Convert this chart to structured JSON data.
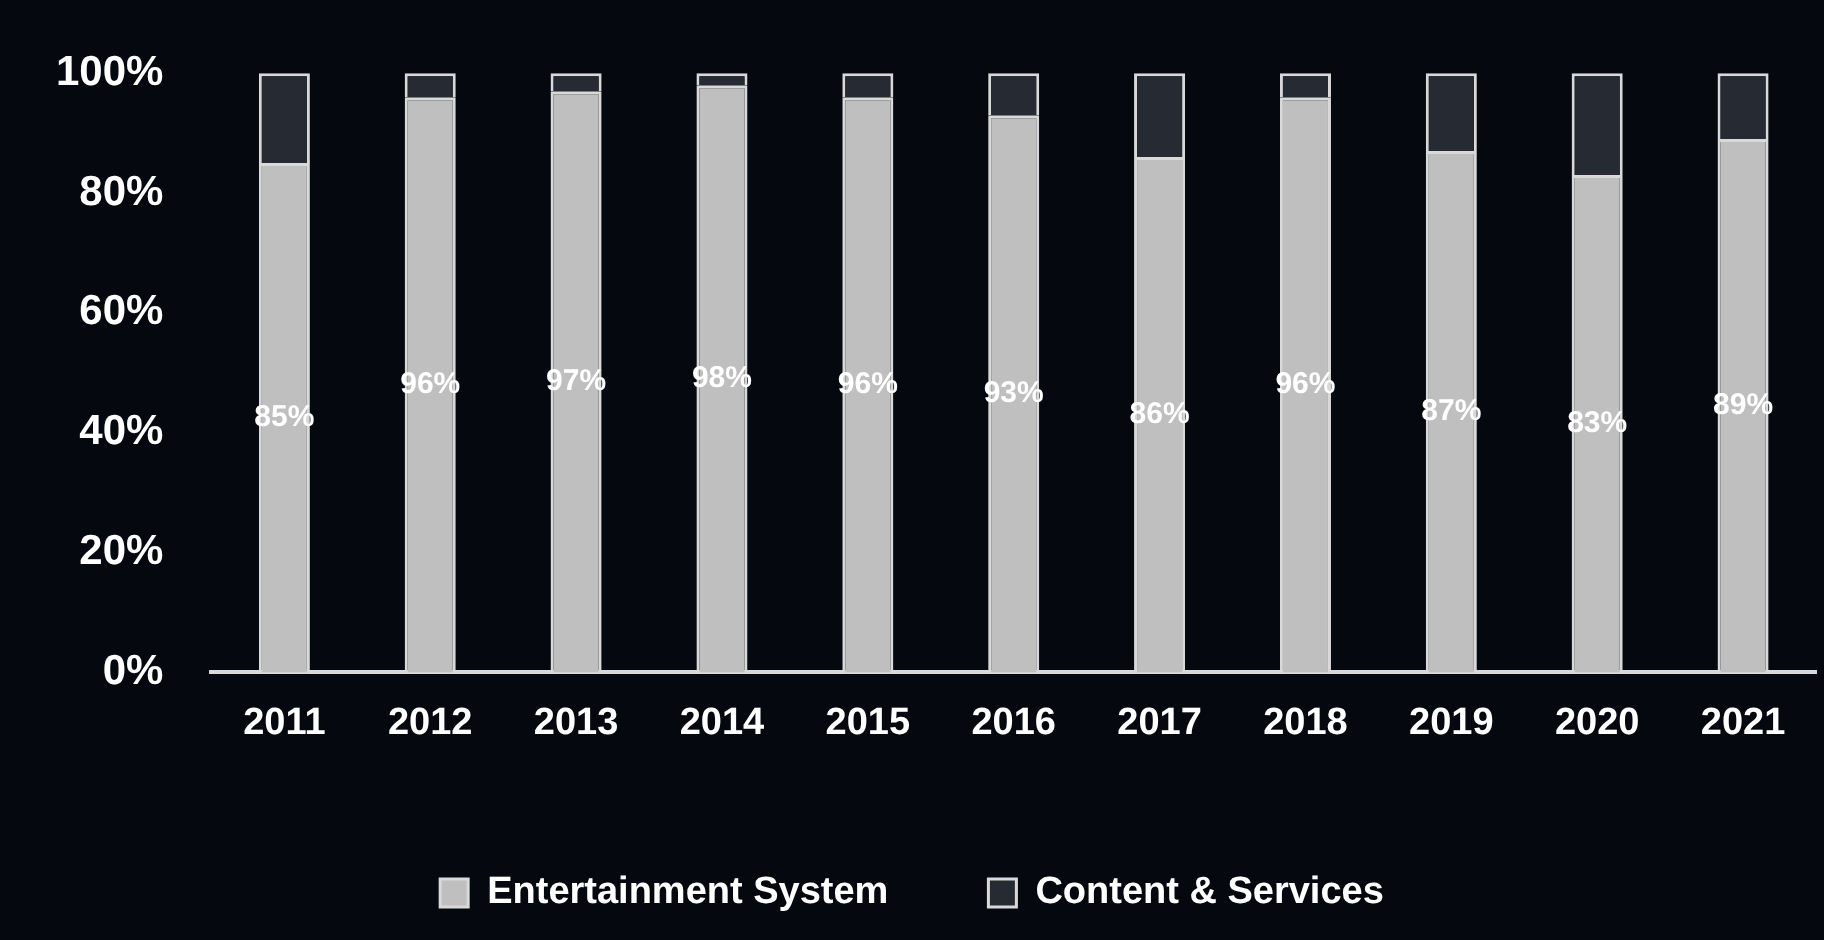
{
  "chart_data": {
    "type": "bar",
    "stacked": true,
    "categories": [
      "2011",
      "2012",
      "2013",
      "2014",
      "2015",
      "2016",
      "2017",
      "2018",
      "2019",
      "2020",
      "2021"
    ],
    "series": [
      {
        "name": "Entertainment System",
        "color": "#bfbfbf",
        "values": [
          85,
          96,
          97,
          98,
          96,
          93,
          86,
          96,
          87,
          83,
          89
        ],
        "value_labels": [
          "85%",
          "96%",
          "97%",
          "98%",
          "96%",
          "93%",
          "86%",
          "96%",
          "87%",
          "83%",
          "89%"
        ]
      },
      {
        "name": "Content & Services",
        "color": "#262b33",
        "values": [
          15,
          4,
          3,
          2,
          4,
          7,
          14,
          4,
          13,
          17,
          11
        ]
      }
    ],
    "ylim": [
      0,
      100
    ],
    "yticks": [
      {
        "value": 0,
        "label": "0%"
      },
      {
        "value": 20,
        "label": "20%"
      },
      {
        "value": 40,
        "label": "40%"
      },
      {
        "value": 60,
        "label": "60%"
      },
      {
        "value": 80,
        "label": "80%"
      },
      {
        "value": 100,
        "label": "100%"
      }
    ],
    "grid": false,
    "legend": "bottom"
  }
}
